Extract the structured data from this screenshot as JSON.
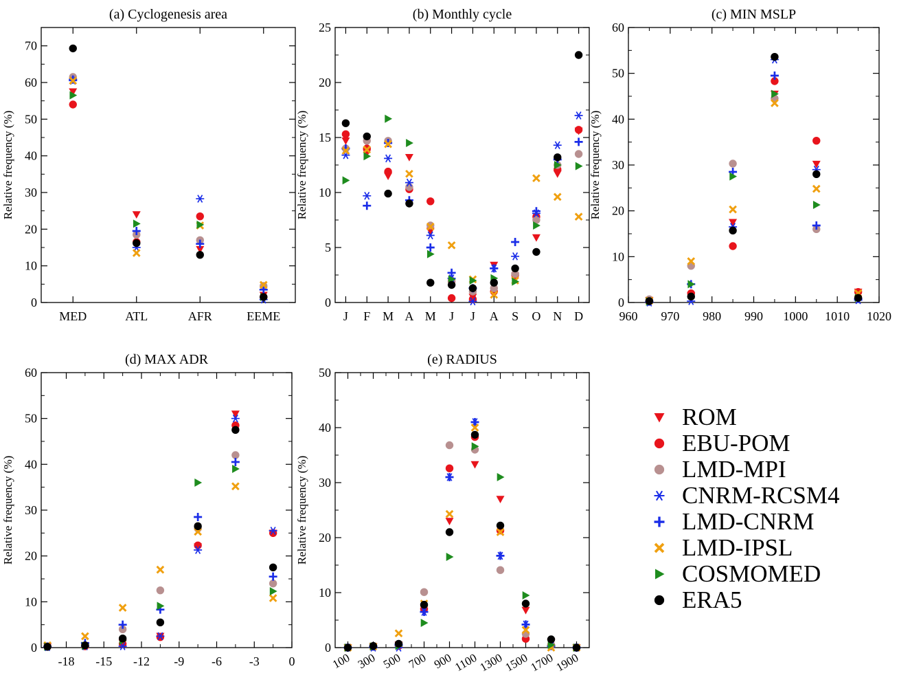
{
  "legend": [
    {
      "key": "ROM",
      "label": "ROM",
      "color": "#e8141c",
      "marker": "triangle-down"
    },
    {
      "key": "EBU",
      "label": "EBU-POM",
      "color": "#e8141c",
      "marker": "circle"
    },
    {
      "key": "MPI",
      "label": "LMD-MPI",
      "color": "#b89090",
      "marker": "circle"
    },
    {
      "key": "CNRM",
      "label": "CNRM-RCSM4",
      "color": "#1a2de8",
      "marker": "star"
    },
    {
      "key": "LMDC",
      "label": "LMD-CNRM",
      "color": "#1a2de8",
      "marker": "plus"
    },
    {
      "key": "IPSL",
      "label": "LMD-IPSL",
      "color": "#f0a010",
      "marker": "cross"
    },
    {
      "key": "COSMO",
      "label": "COSMOMED",
      "color": "#1e8c1e",
      "marker": "triangle-right"
    },
    {
      "key": "ERA5",
      "label": "ERA5",
      "color": "#000000",
      "marker": "circle"
    }
  ],
  "chart_data": [
    {
      "id": "a",
      "type": "scatter",
      "title": "(a) Cyclogenesis area",
      "xlabel": "",
      "ylabel": "Relative frequency (%)",
      "categories": [
        "MED",
        "ATL",
        "AFR",
        "EEME"
      ],
      "ylim": [
        0,
        75
      ],
      "yticks": [
        0,
        10,
        20,
        30,
        40,
        50,
        60,
        70
      ],
      "series": [
        {
          "name": "ROM",
          "values": [
            57.5,
            24,
            14.5,
            2
          ]
        },
        {
          "name": "EBU-POM",
          "values": [
            54,
            16.5,
            23.5,
            1.5
          ]
        },
        {
          "name": "LMD-MPI",
          "values": [
            61.5,
            18.5,
            17,
            4.5
          ]
        },
        {
          "name": "CNRM-RCSM4",
          "values": [
            60.5,
            15,
            28.3,
            0.8
          ]
        },
        {
          "name": "LMD-CNRM",
          "values": [
            60.8,
            19.5,
            16,
            3.5
          ]
        },
        {
          "name": "LMD-IPSL",
          "values": [
            60.5,
            13.5,
            21,
            4.8
          ]
        },
        {
          "name": "COSMOMED",
          "values": [
            56.5,
            21.5,
            21.2,
            1.5
          ]
        },
        {
          "name": "ERA5",
          "values": [
            69.3,
            16.2,
            13,
            1.5
          ]
        }
      ]
    },
    {
      "id": "b",
      "type": "scatter",
      "title": "(b) Monthly cycle",
      "xlabel": "",
      "ylabel": "Relative frequency (%)",
      "categories": [
        "J",
        "F",
        "M",
        "A",
        "M",
        "J",
        "J",
        "A",
        "S",
        "O",
        "N",
        "D"
      ],
      "ylim": [
        0,
        25
      ],
      "yticks": [
        0,
        5,
        10,
        15,
        20,
        25
      ],
      "series": [
        {
          "name": "ROM",
          "values": [
            14.7,
            13.6,
            11.5,
            13.2,
            6.5,
            1.6,
            0.5,
            3.4,
            2.4,
            5.9,
            11.7,
            15.6
          ]
        },
        {
          "name": "EBU-POM",
          "values": [
            15.3,
            14,
            11.9,
            10.3,
            9.2,
            0.4,
            0.3,
            1,
            2.5,
            7.8,
            12.1,
            15.7
          ]
        },
        {
          "name": "LMD-MPI",
          "values": [
            14,
            14.7,
            14.7,
            10.5,
            7,
            2,
            1,
            1.3,
            2.6,
            7.5,
            12.5,
            13.5
          ]
        },
        {
          "name": "CNRM-RCSM4",
          "values": [
            13.4,
            9.7,
            13.1,
            10.9,
            6.1,
            2.2,
            0.1,
            3.1,
            4.2,
            8.1,
            14.3,
            17
          ]
        },
        {
          "name": "LMD-CNRM",
          "values": [
            14,
            8.8,
            14.5,
            9.3,
            5,
            2.7,
            1.3,
            3.1,
            5.5,
            8.3,
            13,
            14.6
          ]
        },
        {
          "name": "LMD-IPSL",
          "values": [
            13.8,
            13.9,
            14.4,
            11.7,
            6.9,
            5.2,
            2.1,
            0.7,
            2,
            11.3,
            9.6,
            7.8
          ]
        },
        {
          "name": "COSMOMED",
          "values": [
            11.1,
            13.3,
            16.7,
            14.5,
            4.4,
            2.1,
            2,
            2.2,
            1.9,
            7,
            12.5,
            12.4
          ]
        },
        {
          "name": "ERA5",
          "values": [
            16.3,
            15.1,
            9.9,
            9,
            1.8,
            1.6,
            1.3,
            1.8,
            3.1,
            4.6,
            13.2,
            22.5
          ]
        }
      ]
    },
    {
      "id": "c",
      "type": "scatter",
      "title": "(c) MIN MSLP",
      "xlabel": "",
      "ylabel": "Relative frequency (%)",
      "xlim": [
        960,
        1020
      ],
      "xticks": [
        960,
        970,
        980,
        990,
        1000,
        1010,
        1020
      ],
      "x": [
        965,
        975,
        985,
        995,
        1005,
        1015
      ],
      "ylim": [
        0,
        60
      ],
      "yticks": [
        0,
        10,
        20,
        30,
        40,
        50,
        60
      ],
      "series": [
        {
          "name": "ROM",
          "values": [
            0.5,
            1.5,
            17.5,
            45.5,
            30.2,
            2.3
          ]
        },
        {
          "name": "EBU-POM",
          "values": [
            0.3,
            2,
            12.3,
            48.3,
            35.3,
            2.3
          ]
        },
        {
          "name": "LMD-MPI",
          "values": [
            0.7,
            8,
            30.3,
            44.5,
            16,
            1
          ]
        },
        {
          "name": "CNRM-RCSM4",
          "values": [
            0,
            0.3,
            16.5,
            53,
            29,
            0.5
          ]
        },
        {
          "name": "LMD-CNRM",
          "values": [
            0.2,
            4,
            28.5,
            49.5,
            16.8,
            0.8
          ]
        },
        {
          "name": "LMD-IPSL",
          "values": [
            0.4,
            9,
            20.3,
            43.5,
            24.8,
            2
          ]
        },
        {
          "name": "COSMOMED",
          "values": [
            0.2,
            4,
            27.5,
            45.5,
            21.3,
            1
          ]
        },
        {
          "name": "ERA5",
          "values": [
            0.3,
            1.3,
            15.7,
            53.6,
            28,
            1
          ]
        }
      ]
    },
    {
      "id": "d",
      "type": "scatter",
      "title": "(d) MAX ADR",
      "xlabel": "",
      "ylabel": "Relative frequency (%)",
      "xlim": [
        -20,
        0
      ],
      "xticks": [
        -18,
        -15,
        -12,
        -9,
        -6,
        -3,
        0
      ],
      "x": [
        -19.5,
        -16.5,
        -13.5,
        -10.5,
        -7.5,
        -4.5,
        -1.5
      ],
      "ylim": [
        0,
        60
      ],
      "yticks": [
        0,
        10,
        20,
        30,
        40,
        50,
        60
      ],
      "series": [
        {
          "name": "ROM",
          "values": [
            0.2,
            0.5,
            1,
            2.5,
            22,
            51,
            25
          ]
        },
        {
          "name": "EBU-POM",
          "values": [
            0.2,
            0.3,
            0.8,
            2.3,
            22.3,
            48.5,
            25
          ]
        },
        {
          "name": "LMD-MPI",
          "values": [
            0.3,
            0.5,
            4,
            12.5,
            26,
            42,
            14
          ]
        },
        {
          "name": "CNRM-RCSM4",
          "values": [
            0.1,
            0.3,
            0.3,
            2.5,
            21.3,
            50,
            25.5
          ]
        },
        {
          "name": "LMD-CNRM",
          "values": [
            0.2,
            1,
            5,
            8.3,
            28.5,
            40.5,
            15.5
          ]
        },
        {
          "name": "LMD-IPSL",
          "values": [
            0.5,
            2.5,
            8.7,
            17,
            25.3,
            35.2,
            10.8
          ]
        },
        {
          "name": "COSMOMED",
          "values": [
            0.2,
            0.4,
            1.5,
            9.1,
            36,
            39,
            12.3
          ]
        },
        {
          "name": "ERA5",
          "values": [
            0.2,
            0.5,
            2,
            5.5,
            26.5,
            47.5,
            17.5
          ]
        }
      ]
    },
    {
      "id": "e",
      "type": "scatter",
      "title": "(e) RADIUS",
      "xlabel": "",
      "ylabel": "Relative frequency (%)",
      "xlim": [
        0,
        2000
      ],
      "xticks": [
        100,
        300,
        500,
        700,
        900,
        1100,
        1300,
        1500,
        1700,
        1900
      ],
      "x": [
        100,
        300,
        500,
        700,
        900,
        1100,
        1300,
        1500,
        1700,
        1900
      ],
      "ylim": [
        0,
        50
      ],
      "yticks": [
        0,
        10,
        20,
        30,
        40,
        50
      ],
      "series": [
        {
          "name": "ROM",
          "values": [
            0,
            0.2,
            0.5,
            6.5,
            23,
            33.3,
            27,
            6.8,
            1,
            0
          ]
        },
        {
          "name": "EBU-POM",
          "values": [
            0,
            0.2,
            0.3,
            7,
            32.6,
            38.3,
            21.3,
            1.6,
            0.5,
            0
          ]
        },
        {
          "name": "LMD-MPI",
          "values": [
            0,
            0.2,
            0.5,
            10.1,
            36.8,
            36,
            14.1,
            2.5,
            0.5,
            0
          ]
        },
        {
          "name": "CNRM-RCSM4",
          "values": [
            0,
            0,
            0,
            6.5,
            31,
            41,
            16.7,
            4.2,
            0.3,
            0
          ]
        },
        {
          "name": "LMD-CNRM",
          "values": [
            0,
            0.2,
            0.5,
            6.5,
            31,
            41,
            16.7,
            4.2,
            0.3,
            0
          ]
        },
        {
          "name": "LMD-IPSL",
          "values": [
            0,
            0.2,
            2.6,
            8,
            24.3,
            40,
            21,
            3.2,
            0,
            0
          ]
        },
        {
          "name": "COSMOMED",
          "values": [
            0,
            0.2,
            0.3,
            4.5,
            16.5,
            36.6,
            31,
            9.5,
            0.5,
            0
          ]
        },
        {
          "name": "ERA5",
          "values": [
            0,
            0.3,
            0.7,
            7.8,
            21,
            38.7,
            22.2,
            8,
            1.5,
            0
          ]
        }
      ]
    }
  ]
}
